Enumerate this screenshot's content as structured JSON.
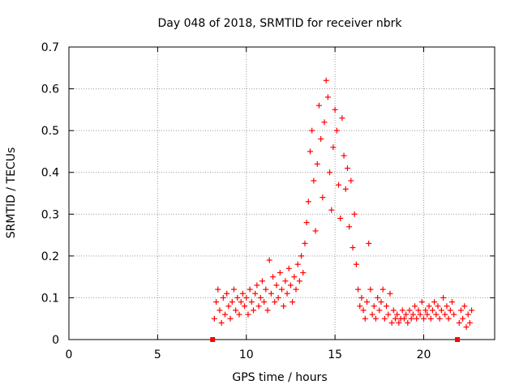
{
  "chart_data": {
    "type": "scatter",
    "title": "Day 048 of 2018, SRMTID for receiver nbrk",
    "xlabel": "GPS time / hours",
    "ylabel": "SRMTID / TECUs",
    "xlim": [
      0,
      24
    ],
    "ylim": [
      0,
      0.7
    ],
    "x_ticks": [
      0,
      5,
      10,
      15,
      20
    ],
    "y_ticks": [
      0,
      0.1,
      0.2,
      0.3,
      0.4,
      0.5,
      0.6,
      0.7
    ],
    "x_tick_labels": [
      "0",
      "5",
      "10",
      "15",
      "20"
    ],
    "y_tick_labels": [
      "0",
      "0.1",
      "0.2",
      "0.3",
      "0.4",
      "0.5",
      "0.6",
      "0.7"
    ],
    "grid": true,
    "marker": "+",
    "marker_color": "#ff0000",
    "square_markers": [
      {
        "x": 8.1,
        "y": 0.0
      },
      {
        "x": 21.9,
        "y": 0.0
      }
    ],
    "series": [
      {
        "name": "SRMTID",
        "points": [
          [
            8.2,
            0.05
          ],
          [
            8.3,
            0.09
          ],
          [
            8.4,
            0.12
          ],
          [
            8.5,
            0.07
          ],
          [
            8.6,
            0.04
          ],
          [
            8.7,
            0.1
          ],
          [
            8.8,
            0.06
          ],
          [
            8.9,
            0.11
          ],
          [
            9.0,
            0.08
          ],
          [
            9.1,
            0.05
          ],
          [
            9.2,
            0.09
          ],
          [
            9.3,
            0.12
          ],
          [
            9.4,
            0.07
          ],
          [
            9.5,
            0.1
          ],
          [
            9.6,
            0.06
          ],
          [
            9.7,
            0.09
          ],
          [
            9.8,
            0.11
          ],
          [
            9.9,
            0.08
          ],
          [
            10.0,
            0.1
          ],
          [
            10.1,
            0.06
          ],
          [
            10.2,
            0.12
          ],
          [
            10.3,
            0.09
          ],
          [
            10.4,
            0.07
          ],
          [
            10.5,
            0.11
          ],
          [
            10.6,
            0.13
          ],
          [
            10.7,
            0.08
          ],
          [
            10.8,
            0.1
          ],
          [
            10.9,
            0.14
          ],
          [
            11.0,
            0.09
          ],
          [
            11.1,
            0.12
          ],
          [
            11.2,
            0.07
          ],
          [
            11.3,
            0.19
          ],
          [
            11.4,
            0.11
          ],
          [
            11.5,
            0.15
          ],
          [
            11.6,
            0.09
          ],
          [
            11.7,
            0.13
          ],
          [
            11.8,
            0.1
          ],
          [
            11.9,
            0.16
          ],
          [
            12.0,
            0.12
          ],
          [
            12.1,
            0.08
          ],
          [
            12.2,
            0.14
          ],
          [
            12.3,
            0.11
          ],
          [
            12.4,
            0.17
          ],
          [
            12.5,
            0.13
          ],
          [
            12.6,
            0.09
          ],
          [
            12.7,
            0.15
          ],
          [
            12.8,
            0.12
          ],
          [
            12.9,
            0.18
          ],
          [
            13.0,
            0.14
          ],
          [
            13.1,
            0.2
          ],
          [
            13.2,
            0.16
          ],
          [
            13.3,
            0.23
          ],
          [
            13.4,
            0.28
          ],
          [
            13.5,
            0.33
          ],
          [
            13.6,
            0.45
          ],
          [
            13.7,
            0.5
          ],
          [
            13.8,
            0.38
          ],
          [
            13.9,
            0.26
          ],
          [
            14.0,
            0.42
          ],
          [
            14.1,
            0.56
          ],
          [
            14.2,
            0.48
          ],
          [
            14.3,
            0.34
          ],
          [
            14.4,
            0.52
          ],
          [
            14.5,
            0.62
          ],
          [
            14.6,
            0.58
          ],
          [
            14.7,
            0.4
          ],
          [
            14.8,
            0.31
          ],
          [
            14.9,
            0.46
          ],
          [
            15.0,
            0.55
          ],
          [
            15.1,
            0.5
          ],
          [
            15.2,
            0.37
          ],
          [
            15.3,
            0.29
          ],
          [
            15.4,
            0.53
          ],
          [
            15.5,
            0.44
          ],
          [
            15.6,
            0.36
          ],
          [
            15.7,
            0.41
          ],
          [
            15.8,
            0.27
          ],
          [
            15.9,
            0.38
          ],
          [
            16.0,
            0.22
          ],
          [
            16.1,
            0.3
          ],
          [
            16.2,
            0.18
          ],
          [
            16.3,
            0.12
          ],
          [
            16.4,
            0.08
          ],
          [
            16.5,
            0.1
          ],
          [
            16.6,
            0.07
          ],
          [
            16.7,
            0.05
          ],
          [
            16.8,
            0.09
          ],
          [
            16.9,
            0.23
          ],
          [
            17.0,
            0.12
          ],
          [
            17.1,
            0.06
          ],
          [
            17.2,
            0.08
          ],
          [
            17.3,
            0.05
          ],
          [
            17.4,
            0.1
          ],
          [
            17.5,
            0.07
          ],
          [
            17.6,
            0.09
          ],
          [
            17.7,
            0.12
          ],
          [
            17.8,
            0.05
          ],
          [
            17.9,
            0.08
          ],
          [
            18.0,
            0.06
          ],
          [
            18.1,
            0.11
          ],
          [
            18.2,
            0.04
          ],
          [
            18.3,
            0.07
          ],
          [
            18.4,
            0.05
          ],
          [
            18.5,
            0.06
          ],
          [
            18.6,
            0.04
          ],
          [
            18.7,
            0.05
          ],
          [
            18.8,
            0.07
          ],
          [
            18.9,
            0.05
          ],
          [
            19.0,
            0.06
          ],
          [
            19.1,
            0.04
          ],
          [
            19.2,
            0.07
          ],
          [
            19.3,
            0.05
          ],
          [
            19.4,
            0.06
          ],
          [
            19.5,
            0.08
          ],
          [
            19.6,
            0.05
          ],
          [
            19.7,
            0.07
          ],
          [
            19.8,
            0.06
          ],
          [
            19.9,
            0.09
          ],
          [
            20.0,
            0.05
          ],
          [
            20.1,
            0.07
          ],
          [
            20.2,
            0.06
          ],
          [
            20.3,
            0.08
          ],
          [
            20.4,
            0.05
          ],
          [
            20.5,
            0.07
          ],
          [
            20.6,
            0.09
          ],
          [
            20.7,
            0.06
          ],
          [
            20.8,
            0.08
          ],
          [
            20.9,
            0.05
          ],
          [
            21.0,
            0.07
          ],
          [
            21.1,
            0.1
          ],
          [
            21.2,
            0.06
          ],
          [
            21.3,
            0.08
          ],
          [
            21.4,
            0.05
          ],
          [
            21.5,
            0.07
          ],
          [
            21.6,
            0.09
          ],
          [
            21.7,
            0.06
          ],
          [
            22.0,
            0.04
          ],
          [
            22.1,
            0.07
          ],
          [
            22.2,
            0.05
          ],
          [
            22.3,
            0.08
          ],
          [
            22.4,
            0.03
          ],
          [
            22.5,
            0.06
          ],
          [
            22.6,
            0.04
          ],
          [
            22.7,
            0.07
          ]
        ]
      }
    ]
  }
}
